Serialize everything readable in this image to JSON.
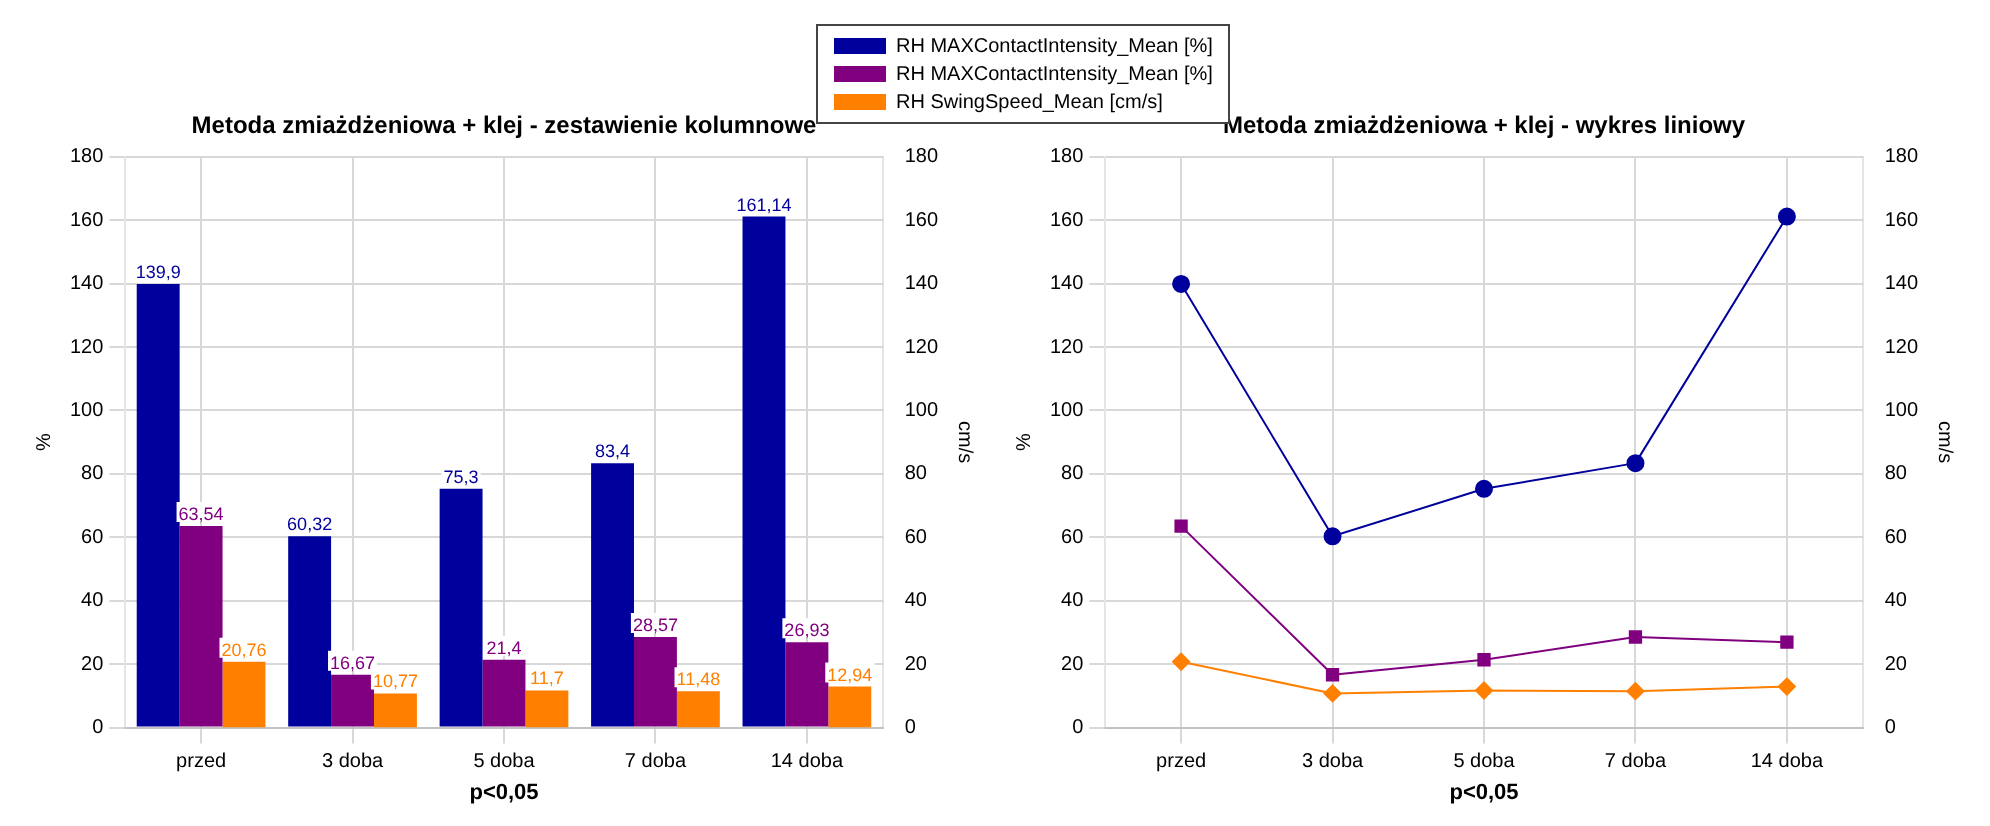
{
  "chart_data": [
    {
      "type": "bar",
      "title": "Metoda zmiażdżeniowa + klej - zestawienie kolumnowe",
      "xlabel": "p<0,05",
      "ylabel": "%",
      "y2label": "cm/s",
      "categories": [
        "przed",
        "3 doba",
        "5 doba",
        "7 doba",
        "14 doba"
      ],
      "legend": "top right",
      "grid": true,
      "ylim": [
        0,
        180
      ],
      "yticks": [
        0,
        20,
        40,
        60,
        80,
        100,
        120,
        140,
        160,
        180
      ],
      "y2lim": [
        0,
        180
      ],
      "y2ticks": [
        0,
        20,
        40,
        60,
        80,
        100,
        120,
        140,
        160,
        180
      ],
      "series": [
        {
          "name": "RH MAXContactIntensity_Mean [%]",
          "color": "#00009c",
          "values": [
            139.9,
            60.32,
            75.3,
            83.4,
            161.14
          ],
          "value_labels": [
            "139,9",
            "60,32",
            "75,3",
            "83,4",
            "161,14"
          ]
        },
        {
          "name": "RH MAXContactIntensity_Mean [%]",
          "color": "#800080",
          "values": [
            63.54,
            16.67,
            21.4,
            28.57,
            26.93
          ],
          "value_labels": [
            "63,54",
            "16,67",
            "21,4",
            "28,57",
            "26,93"
          ]
        },
        {
          "name": "RH SwingSpeed_Mean [cm/s]",
          "color": "#ff8000",
          "axis": "y2",
          "values": [
            20.76,
            10.77,
            11.7,
            11.48,
            12.94
          ],
          "value_labels": [
            "20,76",
            "10,77",
            "11,7",
            "11,48",
            "12,94"
          ]
        }
      ]
    },
    {
      "type": "line",
      "title": "Metoda zmiażdżeniowa + klej - wykres liniowy",
      "xlabel": "p<0,05",
      "ylabel": "%",
      "y2label": "cm/s",
      "categories": [
        "przed",
        "3 doba",
        "5 doba",
        "7 doba",
        "14 doba"
      ],
      "grid": true,
      "ylim": [
        0,
        180
      ],
      "yticks": [
        0,
        20,
        40,
        60,
        80,
        100,
        120,
        140,
        160,
        180
      ],
      "y2lim": [
        0,
        180
      ],
      "y2ticks": [
        0,
        20,
        40,
        60,
        80,
        100,
        120,
        140,
        160,
        180
      ],
      "series": [
        {
          "color": "#00009c",
          "marker": "circle",
          "values": [
            139.9,
            60.32,
            75.3,
            83.4,
            161.14
          ]
        },
        {
          "color": "#800080",
          "marker": "square",
          "values": [
            63.54,
            16.67,
            21.4,
            28.57,
            26.93
          ]
        },
        {
          "color": "#ff8000",
          "marker": "diamond",
          "axis": "y2",
          "values": [
            20.76,
            10.77,
            11.7,
            11.48,
            12.94
          ]
        }
      ]
    }
  ]
}
